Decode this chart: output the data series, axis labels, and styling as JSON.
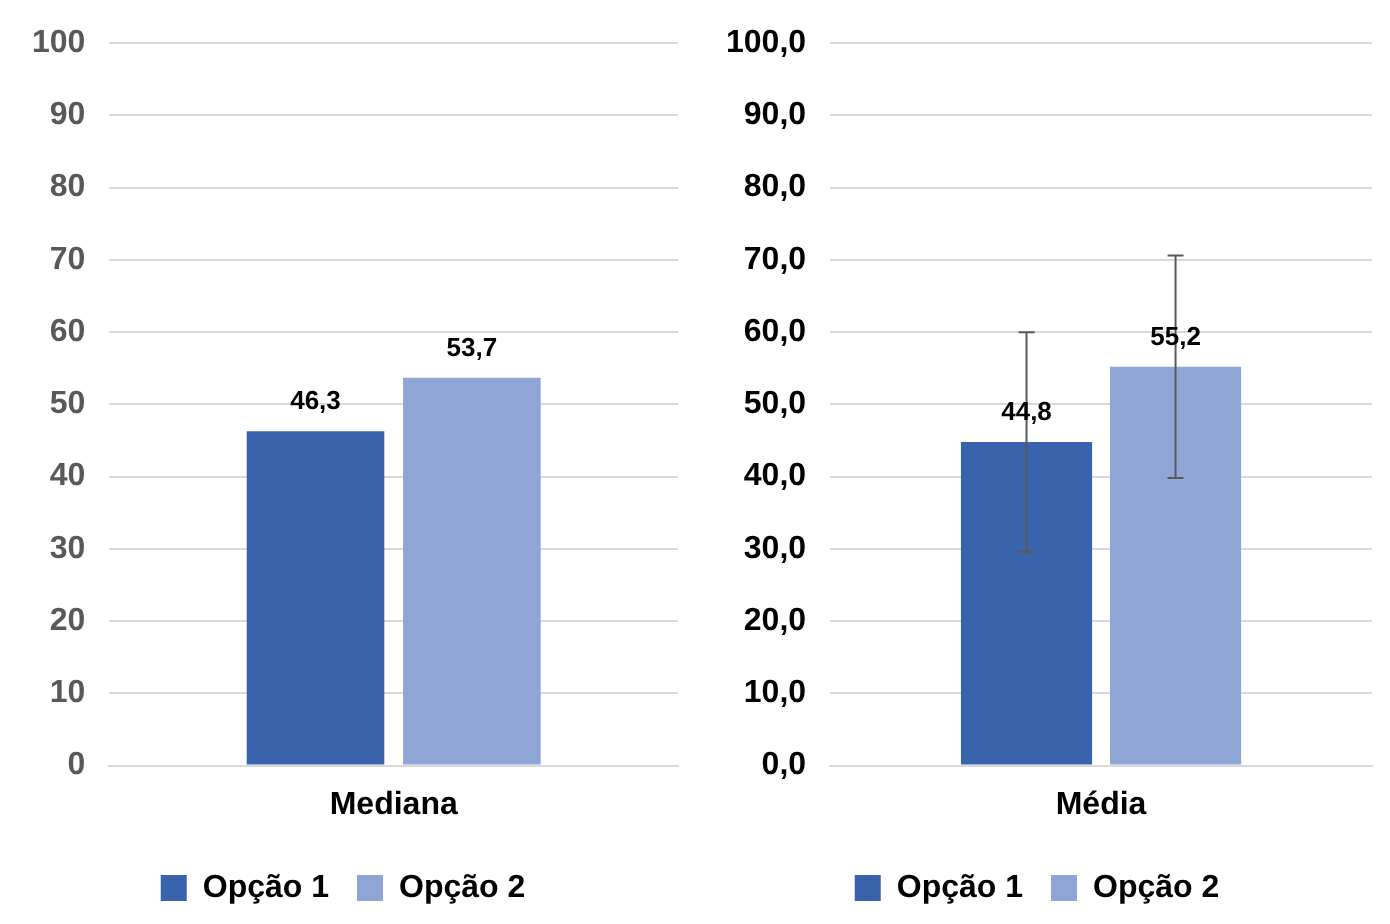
{
  "chart_data": [
    {
      "type": "bar",
      "categories": [
        "Mediana"
      ],
      "ylim": [
        0,
        100
      ],
      "yticks": [
        0,
        10,
        20,
        30,
        40,
        50,
        60,
        70,
        80,
        90,
        100
      ],
      "grid": "y",
      "legend": "bottom",
      "series": [
        {
          "name": "Opção 1",
          "color": "#3a63ad",
          "values": [
            46.3
          ],
          "value_labels": [
            "46,3"
          ]
        },
        {
          "name": "Opção 2",
          "color": "#8fa5d6",
          "values": [
            53.7
          ],
          "value_labels": [
            "53,7"
          ]
        }
      ]
    },
    {
      "type": "bar",
      "categories": [
        "Média"
      ],
      "ylim": [
        0,
        100
      ],
      "yticks": [
        {
          "value": 0,
          "label": "0,0"
        },
        {
          "value": 10,
          "label": "10,0"
        },
        {
          "value": 20,
          "label": "20,0"
        },
        {
          "value": 30,
          "label": "30,0"
        },
        {
          "value": 40,
          "label": "40,0"
        },
        {
          "value": 50,
          "label": "50,0"
        },
        {
          "value": 60,
          "label": "60,0"
        },
        {
          "value": 70,
          "label": "70,0"
        },
        {
          "value": 80,
          "label": "80,0"
        },
        {
          "value": 90,
          "label": "90,0"
        },
        {
          "value": 100,
          "label": "100,0"
        }
      ],
      "grid": "y",
      "legend": "bottom",
      "series": [
        {
          "name": "Opção 1",
          "color": "#3a63ad",
          "values": [
            44.8
          ],
          "value_labels": [
            "44,8"
          ],
          "errors": [
            [
              29.6,
              60.0
            ]
          ]
        },
        {
          "name": "Opção 2",
          "color": "#8fa5d6",
          "values": [
            55.2
          ],
          "value_labels": [
            "55,2"
          ],
          "errors": [
            [
              39.8,
              70.6
            ]
          ]
        }
      ]
    }
  ]
}
